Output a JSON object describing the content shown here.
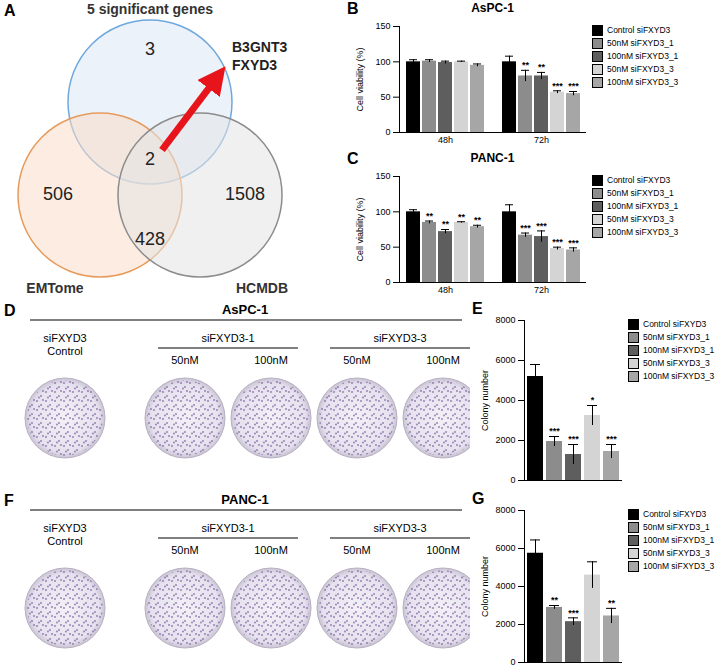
{
  "chart_data": [
    {
      "panel": "A",
      "type": "venn",
      "sets": [
        {
          "name": "5 significant genes",
          "color": "#6fa8dc"
        },
        {
          "name": "EMTome",
          "color": "#e69b5c"
        },
        {
          "name": "HCMDB",
          "color": "#8c8c8c"
        }
      ],
      "regions": [
        {
          "in": [
            0
          ],
          "value": 3
        },
        {
          "in": [
            1
          ],
          "value": 506
        },
        {
          "in": [
            2
          ],
          "value": 1508
        },
        {
          "in": [
            1,
            2
          ],
          "value": 428
        },
        {
          "in": [
            0,
            1,
            2
          ],
          "value": 2
        }
      ],
      "annotation": {
        "text": [
          "B3GNT3",
          "FXYD3"
        ],
        "color": "#e8141b"
      }
    },
    {
      "panel": "B",
      "type": "bar",
      "title": "AsPC-1",
      "categories": [
        "48h",
        "72h"
      ],
      "series": [
        {
          "name": "Control siFXYD3",
          "color": "#000000",
          "values": [
            100,
            100
          ],
          "errors": [
            3,
            8
          ],
          "significance": [
            null,
            null
          ]
        },
        {
          "name": "50nM siFXYD3_1",
          "color": "#8c8c8c",
          "values": [
            101,
            80
          ],
          "errors": [
            2,
            8
          ],
          "significance": [
            null,
            "**"
          ]
        },
        {
          "name": "100nM siFXYD3_1",
          "color": "#5e5e5e",
          "values": [
            99,
            80
          ],
          "errors": [
            2,
            5
          ],
          "significance": [
            null,
            "**"
          ]
        },
        {
          "name": "50nM siFXYD3_3",
          "color": "#d4d4d4",
          "values": [
            100,
            57
          ],
          "errors": [
            1,
            2
          ],
          "significance": [
            null,
            "***"
          ]
        },
        {
          "name": "100nM siFXYD3_3",
          "color": "#a6a6a6",
          "values": [
            95,
            55
          ],
          "errors": [
            2,
            3
          ],
          "significance": [
            null,
            "***"
          ]
        }
      ],
      "ylabel": "Cell viability (%)",
      "ylim": [
        0,
        150
      ],
      "yticks": [
        0,
        50,
        100,
        150
      ],
      "legend": "right"
    },
    {
      "panel": "C",
      "type": "bar",
      "title": "PANC-1",
      "categories": [
        "48h",
        "72h"
      ],
      "series": [
        {
          "name": "Control siFXYD3",
          "color": "#000000",
          "values": [
            100,
            100
          ],
          "errors": [
            3,
            10
          ],
          "significance": [
            null,
            null
          ]
        },
        {
          "name": "50nM siFXYD3_1",
          "color": "#8c8c8c",
          "values": [
            85,
            67
          ],
          "errors": [
            2,
            3
          ],
          "significance": [
            "**",
            "***"
          ]
        },
        {
          "name": "100nM siFXYD3_1",
          "color": "#5e5e5e",
          "values": [
            72,
            65
          ],
          "errors": [
            3,
            8
          ],
          "significance": [
            "**",
            "***"
          ]
        },
        {
          "name": "50nM siFXYD3_3",
          "color": "#d4d4d4",
          "values": [
            85,
            48
          ],
          "errors": [
            1,
            2
          ],
          "significance": [
            "**",
            "***"
          ]
        },
        {
          "name": "100nM siFXYD3_3",
          "color": "#a6a6a6",
          "values": [
            79,
            46
          ],
          "errors": [
            2,
            3
          ],
          "significance": [
            "**",
            "***"
          ]
        }
      ],
      "ylabel": "Cell viability (%)",
      "ylim": [
        0,
        150
      ],
      "yticks": [
        0,
        50,
        100,
        150
      ],
      "legend": "right"
    },
    {
      "panel": "E",
      "type": "bar",
      "categories": [
        "Control siFXYD3",
        "50nM siFXYD3_1",
        "100nM siFXYD3_1",
        "50nM siFXYD3_3",
        "100nM siFXYD3_3"
      ],
      "values": [
        5200,
        1950,
        1300,
        3250,
        1450
      ],
      "errors": [
        600,
        250,
        500,
        500,
        350
      ],
      "significance": [
        null,
        "***",
        "***",
        "*",
        "***"
      ],
      "colors": [
        "#000000",
        "#8c8c8c",
        "#5e5e5e",
        "#d4d4d4",
        "#a6a6a6"
      ],
      "ylabel": "Colony number",
      "ylim": [
        0,
        8000
      ],
      "yticks": [
        0,
        2000,
        4000,
        6000,
        8000
      ],
      "tick_labels": "y",
      "legend": "right"
    },
    {
      "panel": "G",
      "type": "bar",
      "categories": [
        "Control siFXYD3",
        "50nM siFXYD3_1",
        "100nM siFXYD3_1",
        "50nM siFXYD3_3",
        "100nM siFXYD3_3"
      ],
      "values": [
        5750,
        2900,
        2150,
        4600,
        2450
      ],
      "errors": [
        700,
        100,
        200,
        700,
        400
      ],
      "significance": [
        null,
        "**",
        "***",
        null,
        "**"
      ],
      "colors": [
        "#000000",
        "#8c8c8c",
        "#5e5e5e",
        "#d4d4d4",
        "#a6a6a6"
      ],
      "ylabel": "Colony number",
      "ylim": [
        0,
        8000
      ],
      "yticks": [
        0,
        2000,
        4000,
        6000,
        8000
      ],
      "tick_labels": "y",
      "legend": "right"
    }
  ],
  "plates": [
    {
      "panel": "D",
      "title": "AsPC-1",
      "control_label": [
        "siFXYD3",
        "Control"
      ],
      "groups": [
        {
          "name": "siFXYD3-1",
          "doses": [
            "50nM",
            "100nM"
          ]
        },
        {
          "name": "siFXYD3-3",
          "doses": [
            "50nM",
            "100nM"
          ]
        }
      ]
    },
    {
      "panel": "F",
      "title": "PANC-1",
      "control_label": [
        "siFXYD3",
        "Control"
      ],
      "groups": [
        {
          "name": "siFXYD3-1",
          "doses": [
            "50nM",
            "100nM"
          ]
        },
        {
          "name": "siFXYD3-3",
          "doses": [
            "50nM",
            "100nM"
          ]
        }
      ]
    }
  ]
}
